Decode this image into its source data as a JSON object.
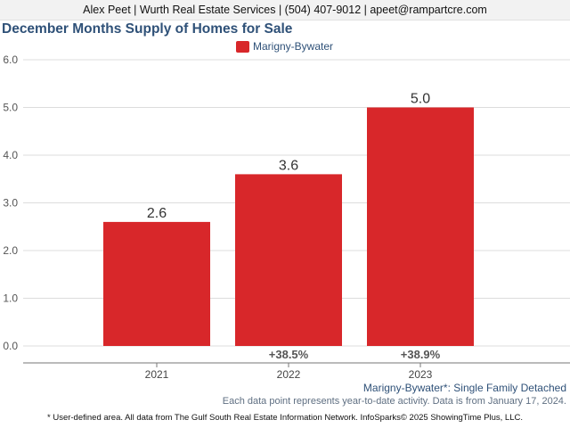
{
  "header": {
    "contact": "Alex Peet | Wurth Real Estate Services | (504) 407-9012 | apeet@rampartcre.com"
  },
  "chart_data": {
    "type": "bar",
    "title": "December Months Supply of Homes for Sale",
    "categories": [
      "2021",
      "2022",
      "2023"
    ],
    "series": [
      {
        "name": "Marigny-Bywater",
        "values": [
          2.6,
          3.6,
          5.0
        ],
        "color": "#d8272a"
      }
    ],
    "data_labels": [
      "2.6",
      "3.6",
      "5.0"
    ],
    "change_labels": [
      "",
      "+38.5%",
      "+38.9%"
    ],
    "ylim": [
      0,
      6
    ],
    "yticks": [
      "0.0",
      "1.0",
      "2.0",
      "3.0",
      "4.0",
      "5.0",
      "6.0"
    ],
    "xlabel": "",
    "ylabel": "",
    "grid": true,
    "legend_position": "top-center"
  },
  "footer": {
    "area_label": "Marigny-Bywater*: Single Family Detached",
    "activity_note": "Each data point represents year-to-date activity. Data is from January 17, 2024.",
    "disclaimer": "* User-defined area. All data from The Gulf South Real Estate Information Network. InfoSparks© 2025 ShowingTime Plus, LLC."
  }
}
